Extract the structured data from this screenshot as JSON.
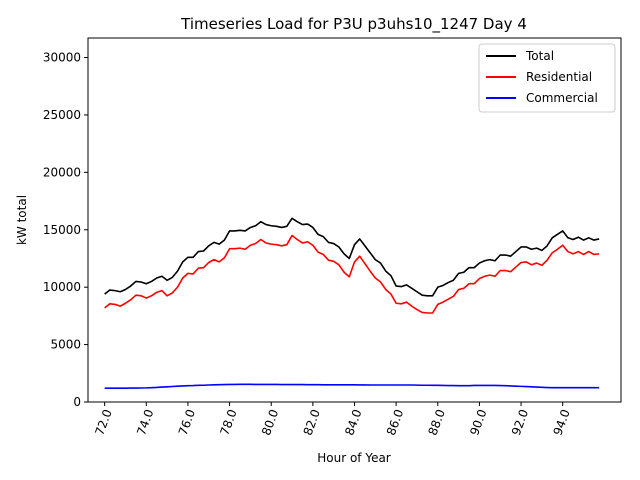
{
  "chart_data": {
    "type": "line",
    "title": "Timeseries Load for P3U p3uhs10_1247  Day 4",
    "xlabel": "Hour of Year",
    "ylabel": "kW total",
    "xlim": [
      71.2,
      96.8
    ],
    "ylim": [
      0,
      31700
    ],
    "xticks": [
      72,
      74,
      76,
      78,
      80,
      82,
      84,
      86,
      88,
      90,
      92,
      94
    ],
    "xtick_labels": [
      "72.0",
      "74.0",
      "76.0",
      "78.0",
      "80.0",
      "82.0",
      "84.0",
      "86.0",
      "88.0",
      "90.0",
      "92.0",
      "94.0"
    ],
    "yticks": [
      0,
      5000,
      10000,
      15000,
      20000,
      25000,
      30000
    ],
    "ytick_labels": [
      "0",
      "5000",
      "10000",
      "15000",
      "20000",
      "25000",
      "30000"
    ],
    "grid": false,
    "legend_position": "top-right",
    "x_start": 72.0,
    "x_step": 0.25,
    "series": [
      {
        "name": "Total",
        "color": "#000000",
        "values": [
          9400,
          9750,
          9700,
          9600,
          9800,
          10100,
          10500,
          10450,
          10300,
          10500,
          10800,
          10950,
          10600,
          10850,
          11400,
          12200,
          12600,
          12600,
          13100,
          13150,
          13600,
          13900,
          13750,
          14100,
          14900,
          14900,
          14950,
          14900,
          15200,
          15350,
          15700,
          15450,
          15350,
          15300,
          15200,
          15300,
          16000,
          15700,
          15450,
          15500,
          15200,
          14600,
          14400,
          13900,
          13800,
          13500,
          12900,
          12500,
          13700,
          14200,
          13600,
          13000,
          12400,
          12100,
          11400,
          11000,
          10100,
          10050,
          10200,
          9900,
          9600,
          9300,
          9250,
          9250,
          10000,
          10150,
          10400,
          10600,
          11200,
          11300,
          11700,
          11700,
          12100,
          12300,
          12400,
          12300,
          12800,
          12800,
          12700,
          13100,
          13500,
          13500,
          13300,
          13400,
          13200,
          13600,
          14300,
          14600,
          14900,
          14300,
          14150,
          14350,
          14100,
          14300,
          14100,
          14200
        ]
      },
      {
        "name": "Residential",
        "color": "#ff0000",
        "values": [
          8200,
          8550,
          8500,
          8350,
          8600,
          8900,
          9300,
          9250,
          9050,
          9250,
          9550,
          9700,
          9250,
          9500,
          10000,
          10800,
          11200,
          11150,
          11650,
          11700,
          12150,
          12400,
          12200,
          12550,
          13350,
          13350,
          13400,
          13300,
          13650,
          13800,
          14150,
          13850,
          13750,
          13700,
          13600,
          13700,
          14500,
          14150,
          13850,
          13950,
          13650,
          13050,
          12850,
          12350,
          12250,
          11950,
          11300,
          10900,
          12200,
          12700,
          12050,
          11400,
          10800,
          10450,
          9800,
          9400,
          8600,
          8550,
          8700,
          8350,
          8050,
          7800,
          7750,
          7750,
          8500,
          8700,
          8950,
          9200,
          9800,
          9900,
          10300,
          10300,
          10750,
          10950,
          11050,
          10950,
          11450,
          11450,
          11350,
          11750,
          12150,
          12200,
          11950,
          12100,
          11900,
          12350,
          13000,
          13300,
          13650,
          13100,
          12900,
          13100,
          12850,
          13100,
          12850,
          12900
        ]
      },
      {
        "name": "Commercial",
        "color": "#0000ff",
        "values": [
          1200,
          1200,
          1200,
          1200,
          1200,
          1210,
          1210,
          1220,
          1230,
          1250,
          1270,
          1300,
          1320,
          1350,
          1380,
          1400,
          1420,
          1430,
          1450,
          1460,
          1480,
          1500,
          1510,
          1520,
          1530,
          1530,
          1540,
          1540,
          1540,
          1530,
          1530,
          1530,
          1530,
          1530,
          1520,
          1520,
          1520,
          1520,
          1520,
          1510,
          1510,
          1510,
          1500,
          1500,
          1500,
          1500,
          1500,
          1500,
          1500,
          1490,
          1490,
          1480,
          1480,
          1480,
          1480,
          1480,
          1480,
          1480,
          1480,
          1480,
          1470,
          1460,
          1460,
          1450,
          1450,
          1440,
          1430,
          1430,
          1420,
          1420,
          1420,
          1440,
          1440,
          1440,
          1440,
          1440,
          1430,
          1420,
          1400,
          1380,
          1360,
          1340,
          1320,
          1300,
          1280,
          1260,
          1250,
          1250,
          1250,
          1250,
          1250,
          1250,
          1250,
          1250,
          1250,
          1250
        ]
      }
    ]
  }
}
